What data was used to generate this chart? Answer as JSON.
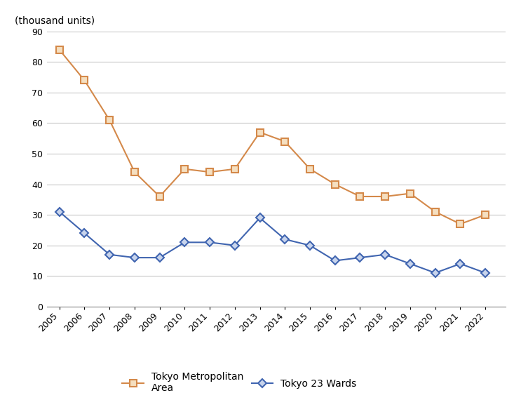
{
  "years": [
    2005,
    2006,
    2007,
    2008,
    2009,
    2010,
    2011,
    2012,
    2013,
    2014,
    2015,
    2016,
    2017,
    2018,
    2019,
    2020,
    2021,
    2022
  ],
  "tokyo_metro": [
    84,
    74,
    61,
    44,
    36,
    45,
    44,
    45,
    57,
    54,
    45,
    40,
    36,
    36,
    37,
    31,
    27,
    30
  ],
  "tokyo_23": [
    31,
    24,
    17,
    16,
    16,
    21,
    21,
    20,
    29,
    22,
    20,
    15,
    16,
    17,
    14,
    11,
    14,
    11
  ],
  "metro_color": "#D4894A",
  "ward_color": "#4065B0",
  "metro_label": "Tokyo Metropolitan\nArea",
  "ward_label": "Tokyo 23 Wards",
  "y_axis_label": "(thousand units)",
  "ylim": [
    0,
    90
  ],
  "yticks": [
    0,
    10,
    20,
    30,
    40,
    50,
    60,
    70,
    80,
    90
  ],
  "background_color": "#ffffff",
  "grid_color": "#c8c8c8",
  "tick_fontsize": 9,
  "label_fontsize": 10,
  "legend_fontsize": 10
}
